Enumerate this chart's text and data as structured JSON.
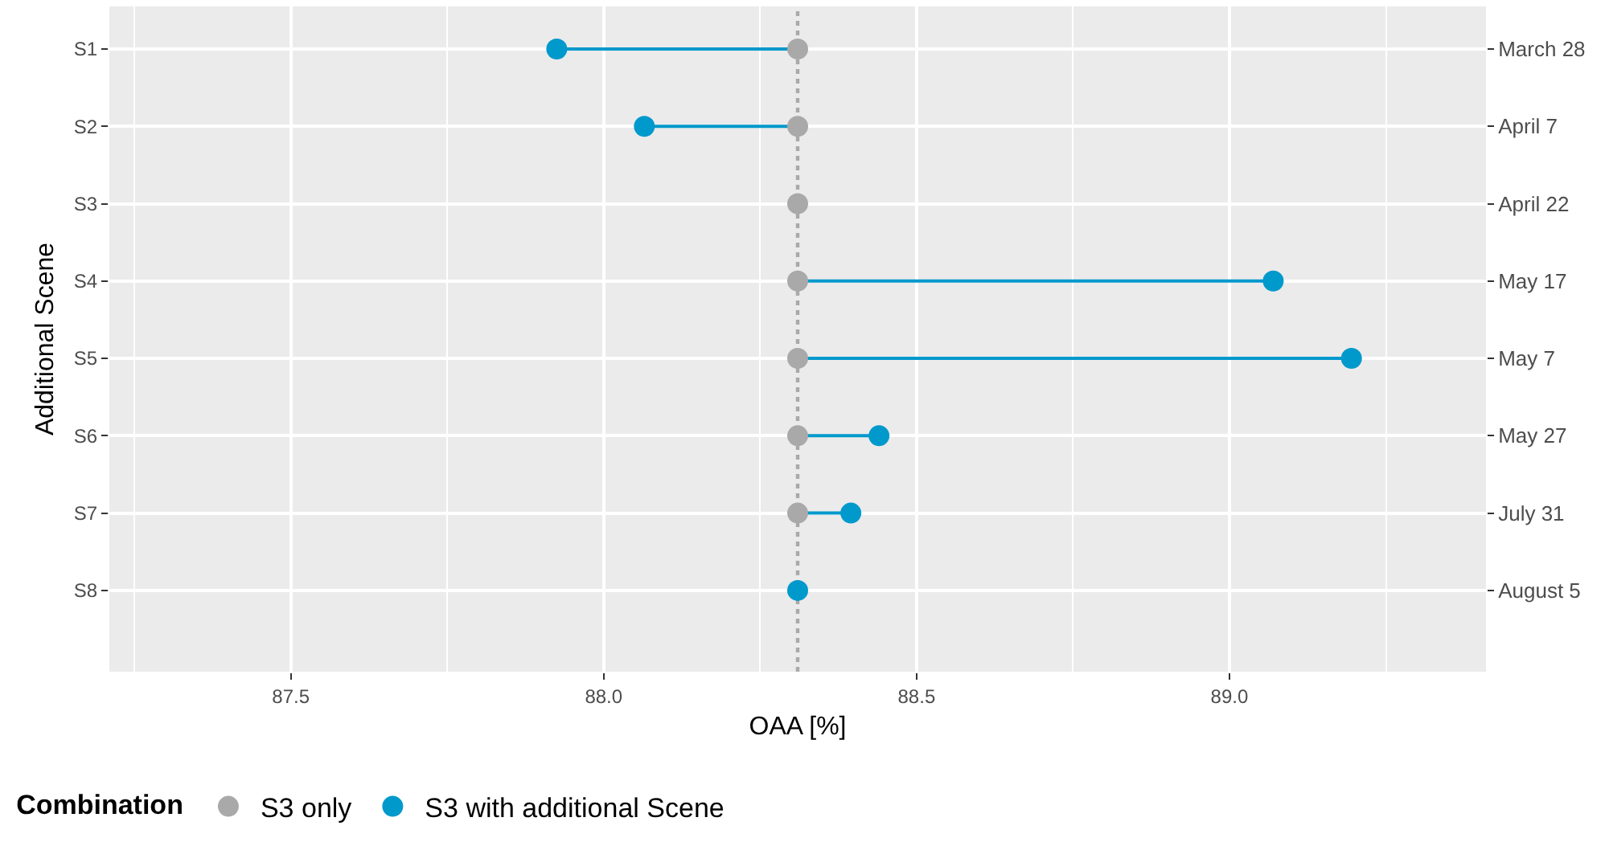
{
  "chart_data": {
    "type": "scatter",
    "orientation": "horizontal",
    "xlabel": "OAA [%]",
    "ylabel": "Additional Scene",
    "legend_title": "Combination",
    "categories": [
      "S1",
      "S2",
      "S3",
      "S4",
      "S5",
      "S6",
      "S7",
      "S8"
    ],
    "y2_categories": [
      "March 28",
      "April 7",
      "April 22",
      "May 17",
      "May 7",
      "May 27",
      "July 31",
      "August 5"
    ],
    "series": [
      {
        "name": "S3 only",
        "color": "#a9a9a9",
        "values": [
          88.31,
          88.31,
          88.31,
          88.31,
          88.31,
          88.31,
          88.31,
          null
        ]
      },
      {
        "name": "S3 with additional Scene",
        "color": "#0099cc",
        "type": "lollipop",
        "values": [
          87.925,
          88.065,
          null,
          89.07,
          89.195,
          88.44,
          88.395,
          88.31
        ]
      }
    ],
    "xlim": [
      87.21,
      89.41
    ],
    "xticks": [
      {
        "value": 87.25,
        "label": null
      },
      87.5,
      {
        "value": 87.75,
        "label": null
      },
      {
        "value": 88,
        "label": "88.0"
      },
      {
        "value": 88.25,
        "label": null
      },
      88.5,
      {
        "value": 88.75,
        "label": null
      },
      {
        "value": 89,
        "label": "89.0"
      },
      {
        "value": 89.25,
        "label": null
      }
    ],
    "ref_lines": [
      {
        "axis": "x",
        "value": 88.31,
        "label": null,
        "color": "#a9a9a9",
        "line_style": "dotted"
      }
    ],
    "grid": true,
    "legend": "bottom",
    "marker": "circle"
  }
}
